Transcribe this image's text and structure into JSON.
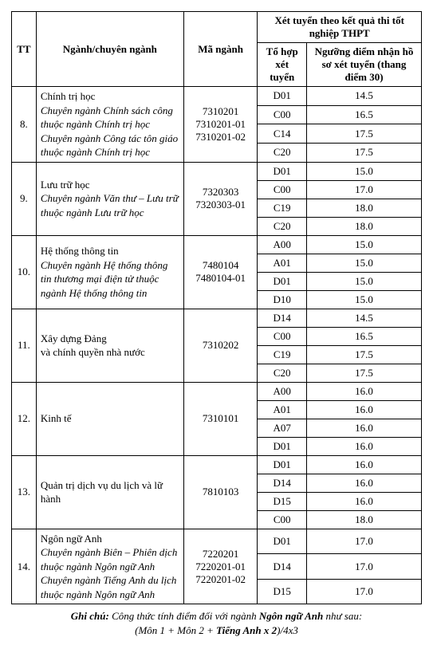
{
  "headers": {
    "tt": "TT",
    "nganh": "Ngành/chuyên ngành",
    "ma": "Mã ngành",
    "group": "Xét tuyển theo kết quả thi tốt nghiệp THPT",
    "combo": "Tổ hợp xét tuyển",
    "score": "Ngưỡng điểm nhận hồ sơ xét tuyển (thang điểm 30)"
  },
  "rows": [
    {
      "tt": "8.",
      "name_main": "Chính trị học",
      "name_subs": [
        "Chuyên ngành Chính sách công thuộc ngành Chính trị học",
        "Chuyên ngành Công tác tôn giáo thuộc ngành Chính trị học"
      ],
      "codes": [
        "7310201",
        "7310201-01",
        "7310201-02"
      ],
      "lines": [
        {
          "combo": "D01",
          "score": "14.5"
        },
        {
          "combo": "C00",
          "score": "16.5"
        },
        {
          "combo": "C14",
          "score": "17.5"
        },
        {
          "combo": "C20",
          "score": "17.5"
        }
      ]
    },
    {
      "tt": "9.",
      "name_main": "Lưu trữ học",
      "name_subs": [
        "Chuyên ngành Văn thư – Lưu trữ thuộc ngành Lưu trữ học"
      ],
      "codes": [
        "7320303",
        "7320303-01"
      ],
      "lines": [
        {
          "combo": "D01",
          "score": "15.0"
        },
        {
          "combo": "C00",
          "score": "17.0"
        },
        {
          "combo": "C19",
          "score": "18.0"
        },
        {
          "combo": "C20",
          "score": "18.0"
        }
      ]
    },
    {
      "tt": "10.",
      "name_main": "Hệ thống thông tin",
      "name_subs": [
        "Chuyên ngành Hệ thống thông tin thương mại điện tử thuộc ngành Hệ thống thông tin"
      ],
      "codes": [
        "7480104",
        "7480104-01"
      ],
      "lines": [
        {
          "combo": "A00",
          "score": "15.0"
        },
        {
          "combo": "A01",
          "score": "15.0"
        },
        {
          "combo": "D01",
          "score": "15.0"
        },
        {
          "combo": "D10",
          "score": "15.0"
        }
      ]
    },
    {
      "tt": "11.",
      "name_main": "Xây dựng Đảng\nvà chính quyền nhà nước",
      "name_subs": [],
      "codes": [
        "7310202"
      ],
      "lines": [
        {
          "combo": "D14",
          "score": "14.5"
        },
        {
          "combo": "C00",
          "score": "16.5"
        },
        {
          "combo": "C19",
          "score": "17.5"
        },
        {
          "combo": "C20",
          "score": "17.5"
        }
      ]
    },
    {
      "tt": "12.",
      "name_main": "Kinh tế",
      "name_subs": [],
      "codes": [
        "7310101"
      ],
      "lines": [
        {
          "combo": "A00",
          "score": "16.0"
        },
        {
          "combo": "A01",
          "score": "16.0"
        },
        {
          "combo": "A07",
          "score": "16.0"
        },
        {
          "combo": "D01",
          "score": "16.0"
        }
      ]
    },
    {
      "tt": "13.",
      "name_main": "Quản trị dịch vụ du lịch và lữ hành",
      "name_subs": [],
      "codes": [
        "7810103"
      ],
      "lines": [
        {
          "combo": "D01",
          "score": "16.0"
        },
        {
          "combo": "D14",
          "score": "16.0"
        },
        {
          "combo": "D15",
          "score": "16.0"
        },
        {
          "combo": "C00",
          "score": "18.0"
        }
      ]
    },
    {
      "tt": "14.",
      "name_main": "Ngôn ngữ Anh",
      "name_subs": [
        "Chuyên ngành Biên – Phiên dịch thuộc ngành Ngôn ngữ Anh",
        "Chuyên ngành Tiếng Anh du lịch thuộc ngành Ngôn ngữ Anh"
      ],
      "codes": [
        "7220201",
        "7220201-01",
        "7220201-02"
      ],
      "lines": [
        {
          "combo": "D01",
          "score": "17.0"
        },
        {
          "combo": "D14",
          "score": "17.0"
        },
        {
          "combo": "D15",
          "score": "17.0"
        }
      ]
    }
  ],
  "footnote": {
    "lead": "Ghi chú:",
    "line1_a": " Công thức tính điểm đối với ngành ",
    "line1_bold": "Ngôn ngữ Anh",
    "line1_b": " như sau:",
    "line2_a": "(Môn 1 + Môn 2 + ",
    "line2_bold": "Tiếng Anh x 2",
    "line2_b": ")/4x3"
  }
}
